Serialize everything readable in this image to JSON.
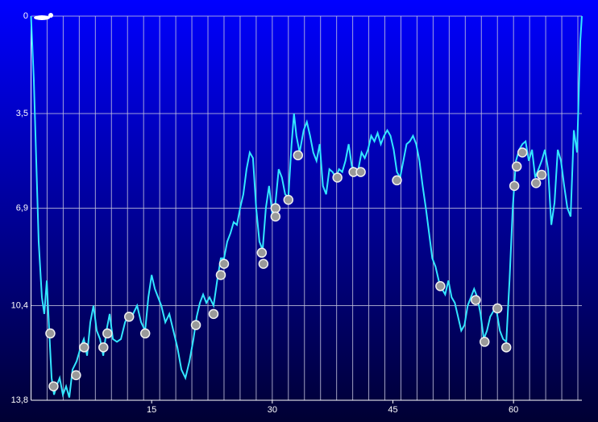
{
  "chart_data": {
    "type": "line",
    "x": [
      0,
      0.35,
      0.65,
      0.95,
      1.35,
      1.65,
      1.96,
      2.26,
      2.56,
      2.86,
      3.16,
      3.56,
      3.96,
      4.36,
      4.76,
      5.16,
      5.67,
      6.17,
      6.57,
      6.97,
      7.37,
      7.77,
      8.17,
      8.58,
      8.98,
      9.38,
      9.78,
      10.18,
      10.68,
      11.18,
      11.69,
      12.19,
      12.69,
      13.19,
      13.69,
      14.19,
      14.59,
      15.0,
      15.4,
      15.8,
      16.2,
      16.7,
      17.2,
      17.7,
      18.2,
      18.7,
      19.2,
      19.7,
      20.2,
      20.6,
      21.0,
      21.4,
      21.8,
      22.2,
      22.7,
      23.2,
      23.6,
      24.0,
      24.4,
      24.8,
      25.2,
      25.6,
      26.0,
      26.4,
      26.8,
      27.2,
      27.6,
      28.0,
      28.4,
      28.8,
      29.2,
      29.6,
      30.0,
      30.4,
      30.8,
      31.2,
      31.6,
      32.0,
      32.4,
      32.7,
      33.0,
      33.4,
      33.9,
      34.3,
      34.7,
      35.1,
      35.5,
      35.9,
      36.3,
      36.7,
      37.1,
      37.5,
      37.9,
      38.3,
      38.7,
      39.1,
      39.5,
      39.9,
      40.3,
      40.7,
      41.1,
      41.5,
      41.9,
      42.3,
      42.7,
      43.1,
      43.5,
      43.9,
      44.3,
      44.7,
      45.1,
      45.5,
      45.9,
      46.3,
      46.7,
      47.1,
      47.5,
      47.9,
      48.3,
      48.7,
      49.1,
      49.5,
      49.9,
      50.3,
      50.7,
      51.1,
      51.5,
      51.9,
      52.3,
      52.7,
      53.1,
      53.5,
      53.9,
      54.3,
      54.7,
      55.1,
      55.5,
      55.9,
      56.3,
      56.7,
      57.1,
      57.5,
      57.9,
      58.3,
      58.7,
      59.1,
      59.5,
      59.9,
      60.3,
      60.7,
      61.1,
      61.5,
      61.9,
      62.3,
      62.7,
      63.1,
      63.5,
      63.9,
      64.3,
      64.7,
      65.1,
      65.5,
      65.9,
      66.3,
      66.7,
      67.1,
      67.5,
      67.9,
      68.3,
      68.5
    ],
    "series": [
      {
        "color": "#33e6ff",
        "values": [
          0,
          2.3,
          5.2,
          8.1,
          10.1,
          10.7,
          9.5,
          11.3,
          13.0,
          13.6,
          13.3,
          13.0,
          13.6,
          13.3,
          13.7,
          12.7,
          12.4,
          11.9,
          11.6,
          12.2,
          11.0,
          10.4,
          11.3,
          11.6,
          12.2,
          11.3,
          10.7,
          11.6,
          11.7,
          11.6,
          11.0,
          10.7,
          10.7,
          10.4,
          11.0,
          11.3,
          10.1,
          9.3,
          9.8,
          10.1,
          10.4,
          11.0,
          10.7,
          11.3,
          11.9,
          12.7,
          13.0,
          12.4,
          11.6,
          10.8,
          10.3,
          10.0,
          10.3,
          10.1,
          10.4,
          9.4,
          8.7,
          8.7,
          8.1,
          7.8,
          7.4,
          7.5,
          6.9,
          6.4,
          5.5,
          4.9,
          5.1,
          6.9,
          8.1,
          8.4,
          6.9,
          6.1,
          7.1,
          6.7,
          5.5,
          5.8,
          6.4,
          6.5,
          4.6,
          3.5,
          4.3,
          4.9,
          4.1,
          3.8,
          4.3,
          4.9,
          5.2,
          4.6,
          6.1,
          6.4,
          5.5,
          5.6,
          5.8,
          5.5,
          5.6,
          5.2,
          4.6,
          5.4,
          5.5,
          5.5,
          4.9,
          5.1,
          4.8,
          4.3,
          4.5,
          4.2,
          4.6,
          4.3,
          4.1,
          4.3,
          4.8,
          5.6,
          5.8,
          5.2,
          4.6,
          4.5,
          4.3,
          4.6,
          5.2,
          6.1,
          6.9,
          7.8,
          8.7,
          9.0,
          9.5,
          9.8,
          10.0,
          9.5,
          10.1,
          10.3,
          10.8,
          11.3,
          11.1,
          10.4,
          10.1,
          9.8,
          10.1,
          10.7,
          11.6,
          11.3,
          10.8,
          10.6,
          10.6,
          11.3,
          11.6,
          11.7,
          9.5,
          6.9,
          5.2,
          4.8,
          4.6,
          4.5,
          5.2,
          4.8,
          5.8,
          5.5,
          5.2,
          4.8,
          5.5,
          7.5,
          6.7,
          4.8,
          5.2,
          6.1,
          6.9,
          7.2,
          4.1,
          4.9,
          0.9,
          0
        ]
      }
    ],
    "events": {
      "x": [
        2.4,
        2.8,
        5.6,
        6.6,
        9.0,
        9.5,
        12.2,
        14.2,
        20.5,
        22.7,
        23.6,
        24.0,
        28.7,
        28.9,
        30.4,
        30.4,
        32.0,
        33.2,
        38.1,
        40.1,
        41.0,
        45.5,
        50.9,
        55.3,
        56.4,
        58.0,
        59.1,
        60.1,
        60.4,
        61.1,
        62.8,
        63.5
      ],
      "values": [
        11.4,
        13.3,
        12.9,
        11.9,
        11.9,
        11.4,
        10.8,
        11.4,
        11.1,
        10.7,
        9.3,
        8.9,
        8.5,
        8.9,
        6.9,
        7.2,
        6.6,
        5.0,
        5.8,
        5.6,
        5.6,
        5.9,
        9.7,
        10.2,
        11.7,
        10.5,
        11.9,
        6.1,
        5.4,
        4.9,
        6.0,
        5.7
      ]
    },
    "xlim": [
      0,
      68.5
    ],
    "xticks": [
      15,
      30,
      45,
      60
    ],
    "xgrid": [
      2,
      4,
      6,
      8,
      10,
      12,
      14,
      16,
      18,
      20,
      22,
      24,
      26,
      28,
      30,
      32,
      34,
      36,
      38,
      40,
      42,
      44,
      46,
      48,
      50,
      52,
      54,
      56,
      58,
      60,
      62,
      64,
      66,
      68
    ],
    "ylim": [
      0,
      13.8
    ],
    "y_inverted": true,
    "yticks": [
      0,
      {
        "value": 3.5,
        "label": "3,5"
      },
      {
        "value": 6.9,
        "label": "6,9"
      },
      {
        "value": 10.4,
        "label": "10,4"
      },
      {
        "value": 13.8,
        "label": "13,8"
      }
    ],
    "grid": true
  }
}
